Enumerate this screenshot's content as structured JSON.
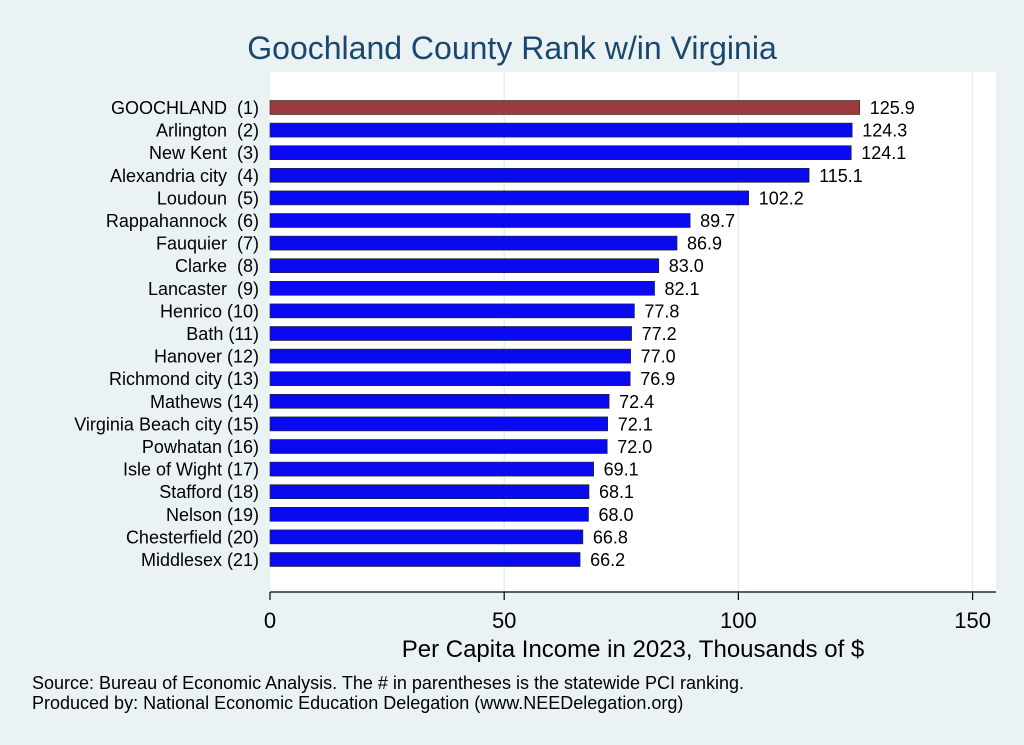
{
  "chart_data": {
    "type": "bar",
    "orientation": "horizontal",
    "title": "Goochland County Rank w/in Virginia",
    "xlabel": "Per Capita Income in 2023, Thousands of $",
    "xlim": [
      0,
      155
    ],
    "xticks": [
      0,
      50,
      100,
      150
    ],
    "grid": true,
    "categories": [
      "GOOCHLAND  (1)",
      "Arlington  (2)",
      "New Kent  (3)",
      "Alexandria city  (4)",
      "Loudoun  (5)",
      "Rappahannock  (6)",
      "Fauquier  (7)",
      "Clarke  (8)",
      "Lancaster  (9)",
      "Henrico (10)",
      "Bath (11)",
      "Hanover (12)",
      "Richmond city (13)",
      "Mathews (14)",
      "Virginia Beach city (15)",
      "Powhatan (16)",
      "Isle of Wight (17)",
      "Stafford (18)",
      "Nelson (19)",
      "Chesterfield (20)",
      "Middlesex (21)"
    ],
    "values": [
      125.9,
      124.3,
      124.1,
      115.1,
      102.2,
      89.7,
      86.9,
      83.0,
      82.1,
      77.8,
      77.2,
      77.0,
      76.9,
      72.4,
      72.1,
      72.0,
      69.1,
      68.1,
      68.0,
      66.8,
      66.2
    ],
    "value_labels": [
      "125.9",
      "124.3",
      "124.1",
      "115.1",
      "102.2",
      "89.7",
      "86.9",
      "83.0",
      "82.1",
      "77.8",
      "77.2",
      "77.0",
      "76.9",
      "72.4",
      "72.1",
      "72.0",
      "69.1",
      "68.1",
      "68.0",
      "66.8",
      "66.2"
    ],
    "highlight_index": 0,
    "colors": {
      "highlight": "#9e3a3f",
      "bar": "#0a0af0",
      "plot_bg": "#ffffff",
      "page_bg": "#eaf2f3",
      "title": "#1a476f"
    }
  },
  "notes": {
    "source": "Source: Bureau of Economic Analysis. The # in parentheses is the statewide PCI ranking.",
    "produced": "Produced by: National Economic Education Delegation (www.NEEDelegation.org)"
  }
}
